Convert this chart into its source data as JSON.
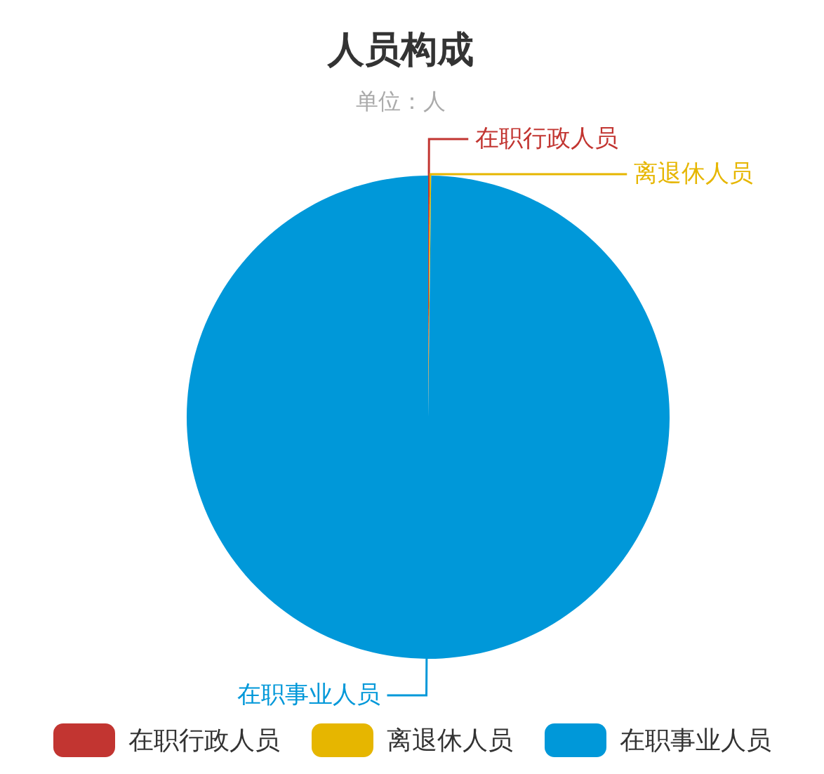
{
  "chart_data": {
    "type": "pie",
    "title": "人员构成",
    "subtitle": "单位：人",
    "categories": [
      "在职行政人员",
      "离退休人员",
      "在职事业人员"
    ],
    "values": [
      0.1,
      0.1,
      99.8
    ],
    "colors": [
      "#c23531",
      "#e6b600",
      "#0098d9"
    ],
    "legend": "bottom"
  }
}
